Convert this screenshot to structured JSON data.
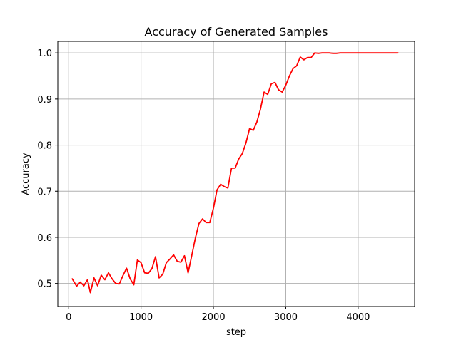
{
  "chart_data": {
    "type": "line",
    "title": "Accuracy of Generated Samples",
    "xlabel": "step",
    "ylabel": "Accuracy",
    "xlim": [
      -150,
      4780
    ],
    "ylim": [
      0.45,
      1.025
    ],
    "xticks": [
      0,
      1000,
      2000,
      3000,
      4000
    ],
    "yticks": [
      0.5,
      0.6,
      0.7,
      0.8,
      0.9,
      1.0
    ],
    "xtick_labels": [
      "0",
      "1000",
      "2000",
      "3000",
      "4000"
    ],
    "ytick_labels": [
      "0.5",
      "0.6",
      "0.7",
      "0.8",
      "0.9",
      "1.0"
    ],
    "grid": true,
    "series": [
      {
        "color": "#ff0000",
        "x": [
          50,
          110,
          160,
          210,
          260,
          300,
          350,
          400,
          450,
          500,
          550,
          600,
          650,
          700,
          750,
          800,
          850,
          900,
          950,
          1000,
          1050,
          1100,
          1150,
          1200,
          1250,
          1300,
          1350,
          1400,
          1450,
          1500,
          1550,
          1600,
          1650,
          1700,
          1750,
          1800,
          1850,
          1900,
          1950,
          2000,
          2050,
          2100,
          2150,
          2200,
          2250,
          2300,
          2350,
          2400,
          2450,
          2500,
          2550,
          2600,
          2650,
          2700,
          2750,
          2800,
          2850,
          2900,
          2950,
          3000,
          3050,
          3100,
          3150,
          3200,
          3250,
          3300,
          3350,
          3400,
          3450,
          3500,
          3550,
          3600,
          3650,
          3700,
          3750,
          3800,
          3850,
          3900,
          3950,
          4000,
          4050,
          4100,
          4150,
          4200,
          4250,
          4300,
          4350,
          4400,
          4450,
          4500,
          4550
        ],
        "values": [
          0.51,
          0.494,
          0.503,
          0.495,
          0.508,
          0.48,
          0.512,
          0.495,
          0.518,
          0.508,
          0.523,
          0.51,
          0.5,
          0.499,
          0.517,
          0.533,
          0.51,
          0.497,
          0.551,
          0.545,
          0.523,
          0.522,
          0.532,
          0.558,
          0.512,
          0.52,
          0.545,
          0.553,
          0.562,
          0.548,
          0.546,
          0.56,
          0.523,
          0.56,
          0.598,
          0.63,
          0.64,
          0.632,
          0.632,
          0.663,
          0.703,
          0.715,
          0.71,
          0.707,
          0.75,
          0.75,
          0.77,
          0.782,
          0.805,
          0.836,
          0.832,
          0.85,
          0.878,
          0.915,
          0.91,
          0.933,
          0.936,
          0.92,
          0.915,
          0.93,
          0.95,
          0.966,
          0.972,
          0.991,
          0.985,
          0.99,
          0.99,
          1.0,
          0.999,
          1.0,
          1.0,
          1.0,
          0.999,
          0.999,
          1.0,
          1.0,
          1.0,
          1.0,
          1.0,
          1.0,
          1.0,
          1.0,
          1.0,
          1.0,
          1.0,
          1.0,
          1.0,
          1.0,
          1.0,
          1.0,
          1.0
        ]
      }
    ]
  }
}
